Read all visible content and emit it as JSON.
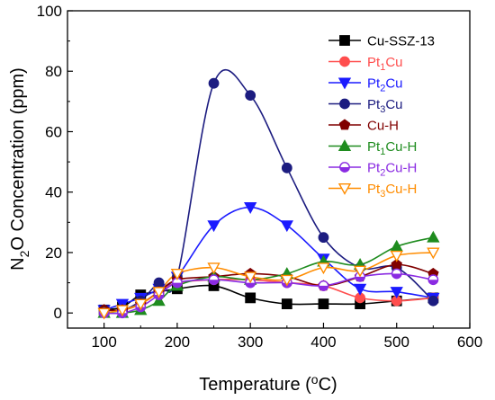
{
  "chart_data": {
    "type": "line",
    "title": "",
    "xlabel": "Temperature (°C)",
    "ylabel": "N2O Concentration (ppm)",
    "xlim": [
      50,
      600
    ],
    "ylim": [
      -5,
      100
    ],
    "xticks": [
      100,
      200,
      300,
      400,
      500,
      600
    ],
    "yticks": [
      0,
      20,
      40,
      60,
      80,
      100
    ],
    "grid": false,
    "legend_position": "top-right",
    "series": [
      {
        "name": "Cu-SSZ-13",
        "color": "#000000",
        "marker": "square",
        "filled": true,
        "x": [
          100,
          125,
          150,
          175,
          200,
          250,
          300,
          350,
          400,
          450,
          500,
          550
        ],
        "y": [
          1,
          2,
          6,
          7,
          8,
          9,
          5,
          3,
          3,
          3,
          4,
          5
        ]
      },
      {
        "name": "Pt1Cu",
        "color": "#ff4d4d",
        "marker": "circle",
        "filled": true,
        "x": [
          100,
          125,
          150,
          175,
          200,
          250,
          300,
          350,
          400,
          450,
          500,
          550
        ],
        "y": [
          1,
          1,
          3,
          7,
          10,
          11,
          11,
          10,
          9,
          5,
          4,
          5
        ]
      },
      {
        "name": "Pt2Cu",
        "color": "#1a1aff",
        "marker": "triangle-down",
        "filled": true,
        "x": [
          100,
          125,
          150,
          175,
          200,
          250,
          300,
          350,
          400,
          450,
          500,
          550
        ],
        "y": [
          1,
          3,
          5,
          8,
          12,
          29,
          35,
          29,
          18,
          8,
          7,
          5
        ]
      },
      {
        "name": "Pt3Cu",
        "color": "#1c1c80",
        "marker": "circle",
        "filled": true,
        "x": [
          100,
          125,
          150,
          175,
          200,
          250,
          300,
          350,
          400,
          450,
          500,
          550
        ],
        "y": [
          1,
          1,
          4,
          10,
          12,
          76,
          72,
          48,
          25,
          15,
          15,
          4
        ]
      },
      {
        "name": "Cu-H",
        "color": "#800000",
        "marker": "pentagon",
        "filled": true,
        "x": [
          100,
          125,
          150,
          175,
          200,
          250,
          300,
          350,
          400,
          450,
          500,
          550
        ],
        "y": [
          1,
          1,
          3,
          7,
          11,
          12,
          13,
          12,
          9,
          12,
          16,
          13
        ]
      },
      {
        "name": "Pt1Cu-H",
        "color": "#1f8c1f",
        "marker": "triangle-up",
        "filled": true,
        "x": [
          100,
          125,
          150,
          175,
          200,
          250,
          300,
          350,
          400,
          450,
          500,
          550
        ],
        "y": [
          0,
          0,
          1,
          4,
          9,
          12,
          11,
          13,
          17,
          16,
          22,
          25
        ]
      },
      {
        "name": "Pt2Cu-H",
        "color": "#8a2be2",
        "marker": "circle-half",
        "filled": false,
        "x": [
          100,
          125,
          150,
          175,
          200,
          250,
          300,
          350,
          400,
          450,
          500,
          550
        ],
        "y": [
          0,
          0,
          2,
          6,
          10,
          11,
          10,
          10,
          9,
          12,
          13,
          11
        ]
      },
      {
        "name": "Pt3Cu-H",
        "color": "#ff8c00",
        "marker": "triangle-down",
        "filled": false,
        "x": [
          100,
          125,
          150,
          175,
          200,
          250,
          300,
          350,
          400,
          450,
          500,
          550
        ],
        "y": [
          0,
          1,
          3,
          7,
          13,
          15,
          12,
          11,
          15,
          14,
          19,
          20
        ]
      }
    ]
  }
}
